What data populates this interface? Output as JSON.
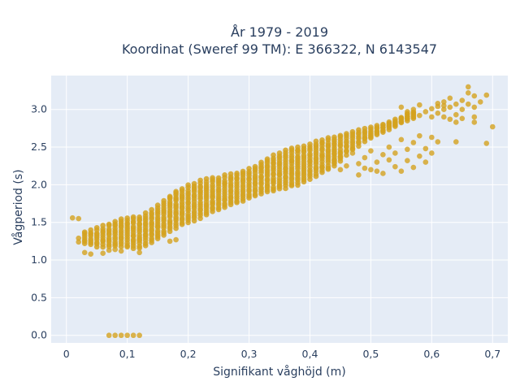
{
  "chart_data": {
    "type": "scatter",
    "title_line1": "År 1979 - 2019",
    "title_line2": "Koordinat (Sweref 99 TM): E 366322, N 6143547",
    "xlabel": "Signifikant våghöjd (m)",
    "ylabel": "Vågperiod (s)",
    "xlim": [
      -0.025,
      0.725
    ],
    "ylim": [
      -0.1,
      3.45
    ],
    "x_ticks": [
      0,
      0.1,
      0.2,
      0.3,
      0.4,
      0.5,
      0.6,
      0.7
    ],
    "x_tick_labels": [
      "0",
      "0,1",
      "0,2",
      "0,3",
      "0,4",
      "0,5",
      "0,6",
      "0,7"
    ],
    "y_ticks": [
      0,
      0.5,
      1,
      1.5,
      2,
      2.5,
      3
    ],
    "y_tick_labels": [
      "0.0",
      "0.5",
      "1.0",
      "1.5",
      "2.0",
      "2.5",
      "3.0"
    ],
    "grid": true,
    "background": "#e5ecf6",
    "marker_color": "#d4a21f",
    "band": [
      [
        0.03,
        1.22,
        1.38
      ],
      [
        0.04,
        1.2,
        1.4
      ],
      [
        0.05,
        1.18,
        1.42
      ],
      [
        0.06,
        1.18,
        1.45
      ],
      [
        0.07,
        1.18,
        1.48
      ],
      [
        0.08,
        1.18,
        1.52
      ],
      [
        0.09,
        1.18,
        1.55
      ],
      [
        0.1,
        1.17,
        1.56
      ],
      [
        0.11,
        1.16,
        1.57
      ],
      [
        0.12,
        1.16,
        1.58
      ],
      [
        0.13,
        1.2,
        1.62
      ],
      [
        0.14,
        1.24,
        1.66
      ],
      [
        0.15,
        1.28,
        1.72
      ],
      [
        0.16,
        1.33,
        1.78
      ],
      [
        0.17,
        1.38,
        1.84
      ],
      [
        0.18,
        1.43,
        1.9
      ],
      [
        0.19,
        1.47,
        1.95
      ],
      [
        0.2,
        1.5,
        1.99
      ],
      [
        0.21,
        1.53,
        2.02
      ],
      [
        0.22,
        1.56,
        2.05
      ],
      [
        0.23,
        1.6,
        2.07
      ],
      [
        0.24,
        1.64,
        2.09
      ],
      [
        0.25,
        1.67,
        2.1
      ],
      [
        0.26,
        1.7,
        2.12
      ],
      [
        0.27,
        1.73,
        2.14
      ],
      [
        0.28,
        1.76,
        2.16
      ],
      [
        0.29,
        1.79,
        2.18
      ],
      [
        0.3,
        1.82,
        2.21
      ],
      [
        0.31,
        1.85,
        2.25
      ],
      [
        0.32,
        1.88,
        2.3
      ],
      [
        0.33,
        1.9,
        2.35
      ],
      [
        0.34,
        1.92,
        2.39
      ],
      [
        0.35,
        1.94,
        2.42
      ],
      [
        0.36,
        1.96,
        2.45
      ],
      [
        0.37,
        1.98,
        2.48
      ],
      [
        0.38,
        2.0,
        2.5
      ],
      [
        0.39,
        2.04,
        2.52
      ],
      [
        0.4,
        2.08,
        2.54
      ],
      [
        0.41,
        2.12,
        2.57
      ],
      [
        0.42,
        2.16,
        2.6
      ],
      [
        0.43,
        2.2,
        2.62
      ],
      [
        0.44,
        2.26,
        2.64
      ],
      [
        0.45,
        2.32,
        2.66
      ],
      [
        0.46,
        2.4,
        2.68
      ],
      [
        0.47,
        2.46,
        2.7
      ],
      [
        0.48,
        2.52,
        2.72
      ],
      [
        0.49,
        2.58,
        2.74
      ],
      [
        0.5,
        2.62,
        2.76
      ],
      [
        0.51,
        2.66,
        2.78
      ],
      [
        0.52,
        2.7,
        2.8
      ],
      [
        0.53,
        2.74,
        2.83
      ],
      [
        0.54,
        2.78,
        2.86
      ],
      [
        0.55,
        2.82,
        2.9
      ],
      [
        0.56,
        2.86,
        2.94
      ],
      [
        0.57,
        2.89,
        2.97
      ]
    ],
    "points": [
      [
        0.01,
        1.56
      ],
      [
        0.02,
        1.55
      ],
      [
        0.02,
        1.29
      ],
      [
        0.02,
        1.24
      ],
      [
        0.03,
        1.1
      ],
      [
        0.04,
        1.08
      ],
      [
        0.05,
        1.35
      ],
      [
        0.06,
        1.09
      ],
      [
        0.07,
        1.13
      ],
      [
        0.08,
        1.14
      ],
      [
        0.09,
        1.12
      ],
      [
        0.12,
        1.1
      ],
      [
        0.17,
        1.25
      ],
      [
        0.18,
        1.27
      ],
      [
        0.18,
        1.91
      ],
      [
        0.17,
        1.83
      ],
      [
        0.07,
        0.0
      ],
      [
        0.08,
        0.0
      ],
      [
        0.09,
        0.0
      ],
      [
        0.1,
        0.0
      ],
      [
        0.11,
        0.0
      ],
      [
        0.12,
        0.0
      ],
      [
        0.44,
        2.3
      ],
      [
        0.44,
        2.42
      ],
      [
        0.45,
        2.2
      ],
      [
        0.45,
        2.37
      ],
      [
        0.46,
        2.25
      ],
      [
        0.47,
        2.42
      ],
      [
        0.48,
        2.13
      ],
      [
        0.48,
        2.28
      ],
      [
        0.49,
        2.22
      ],
      [
        0.49,
        2.36
      ],
      [
        0.5,
        2.45
      ],
      [
        0.5,
        2.2
      ],
      [
        0.51,
        2.18
      ],
      [
        0.51,
        2.3
      ],
      [
        0.52,
        2.4
      ],
      [
        0.52,
        2.15
      ],
      [
        0.53,
        2.33
      ],
      [
        0.53,
        2.5
      ],
      [
        0.54,
        2.24
      ],
      [
        0.54,
        2.42
      ],
      [
        0.55,
        2.6
      ],
      [
        0.55,
        2.18
      ],
      [
        0.56,
        2.32
      ],
      [
        0.56,
        2.47
      ],
      [
        0.57,
        2.23
      ],
      [
        0.57,
        2.56
      ],
      [
        0.58,
        2.38
      ],
      [
        0.58,
        2.65
      ],
      [
        0.59,
        2.3
      ],
      [
        0.59,
        2.48
      ],
      [
        0.6,
        2.42
      ],
      [
        0.6,
        2.63
      ],
      [
        0.61,
        2.57
      ],
      [
        0.55,
        3.03
      ],
      [
        0.56,
        2.97
      ],
      [
        0.57,
        3.0
      ],
      [
        0.58,
        3.06
      ],
      [
        0.58,
        2.92
      ],
      [
        0.59,
        2.97
      ],
      [
        0.6,
        2.9
      ],
      [
        0.6,
        3.01
      ],
      [
        0.61,
        2.95
      ],
      [
        0.61,
        3.04
      ],
      [
        0.62,
        2.9
      ],
      [
        0.62,
        3.0
      ],
      [
        0.62,
        3.1
      ],
      [
        0.63,
        2.87
      ],
      [
        0.63,
        3.03
      ],
      [
        0.63,
        3.15
      ],
      [
        0.64,
        2.93
      ],
      [
        0.64,
        3.07
      ],
      [
        0.64,
        2.83
      ],
      [
        0.65,
        3.0
      ],
      [
        0.65,
        3.12
      ],
      [
        0.65,
        2.88
      ],
      [
        0.66,
        3.07
      ],
      [
        0.66,
        3.22
      ],
      [
        0.66,
        3.3
      ],
      [
        0.67,
        2.83
      ],
      [
        0.67,
        3.03
      ],
      [
        0.67,
        3.18
      ],
      [
        0.68,
        3.1
      ],
      [
        0.69,
        3.19
      ],
      [
        0.69,
        2.55
      ],
      [
        0.7,
        2.77
      ],
      [
        0.64,
        2.57
      ],
      [
        0.67,
        2.9
      ],
      [
        0.61,
        3.08
      ],
      [
        0.62,
        3.05
      ]
    ]
  }
}
